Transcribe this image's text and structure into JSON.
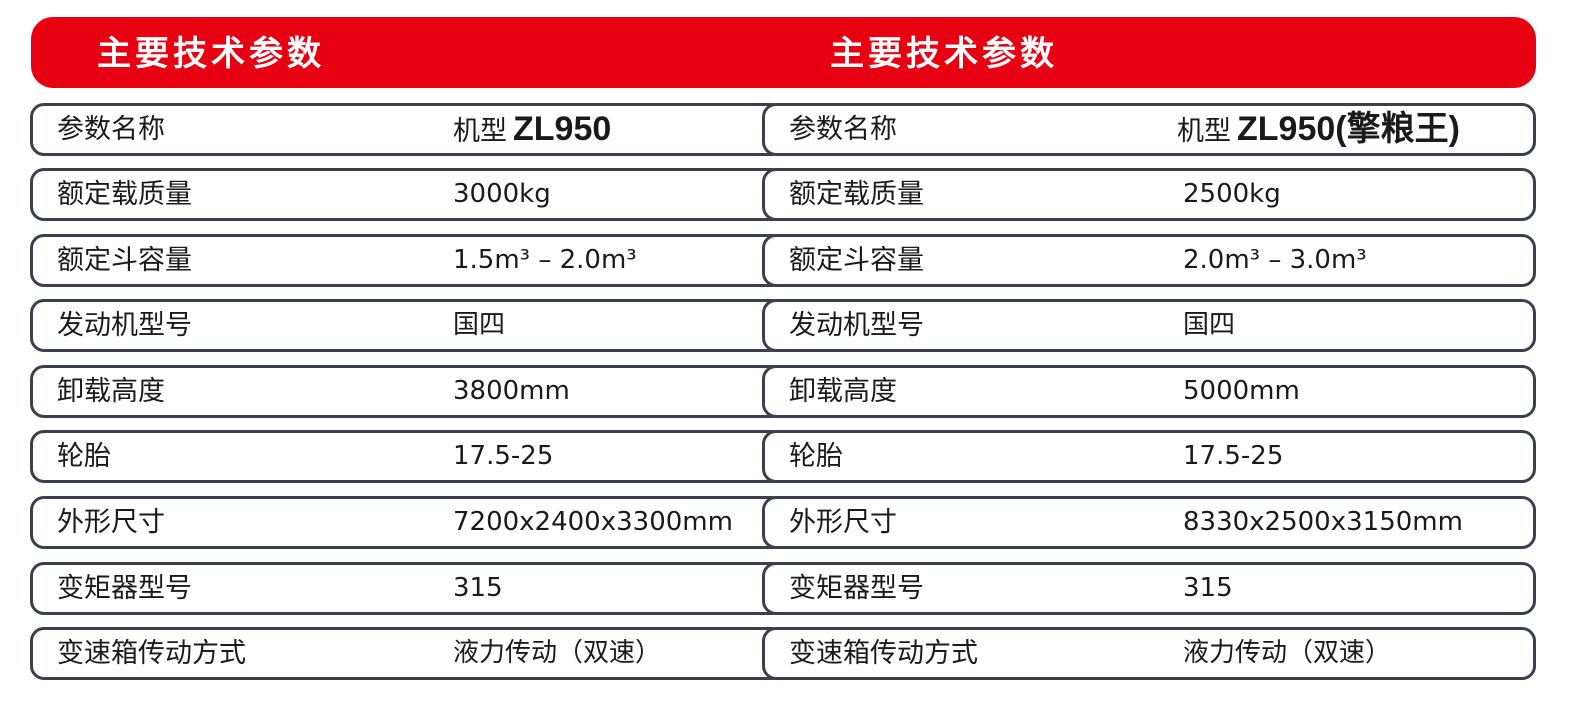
{
  "header": {
    "left_title": "主要技术参数",
    "right_title": "主要技术参数",
    "accent_color": "#e60012"
  },
  "left_table": {
    "model_prefix": "机型",
    "model": "ZL950",
    "rows": [
      {
        "label": "参数名称"
      },
      {
        "label": "额定载质量",
        "value": "3000kg"
      },
      {
        "label": "额定斗容量",
        "value": "1.5m³ – 2.0m³"
      },
      {
        "label": "发动机型号",
        "value": "国四"
      },
      {
        "label": "卸载高度",
        "value": "3800mm"
      },
      {
        "label": "轮胎",
        "value": "17.5-25"
      },
      {
        "label": "外形尺寸",
        "value": "7200x2400x3300mm"
      },
      {
        "label": "变矩器型号",
        "value": "315"
      },
      {
        "label": "变速箱传动方式",
        "value": "液力传动（双速）"
      }
    ]
  },
  "right_table": {
    "model_prefix": "机型",
    "model": "ZL950(擎粮王)",
    "rows": [
      {
        "label": "参数名称"
      },
      {
        "label": "额定载质量",
        "value": "2500kg"
      },
      {
        "label": "额定斗容量",
        "value": "2.0m³ – 3.0m³"
      },
      {
        "label": "发动机型号",
        "value": "国四"
      },
      {
        "label": "卸载高度",
        "value": "5000mm"
      },
      {
        "label": "轮胎",
        "value": "17.5-25"
      },
      {
        "label": "外形尺寸",
        "value": "8330x2500x3150mm"
      },
      {
        "label": "变矩器型号",
        "value": "315"
      },
      {
        "label": "变速箱传动方式",
        "value": "液力传动（双速）"
      }
    ]
  }
}
